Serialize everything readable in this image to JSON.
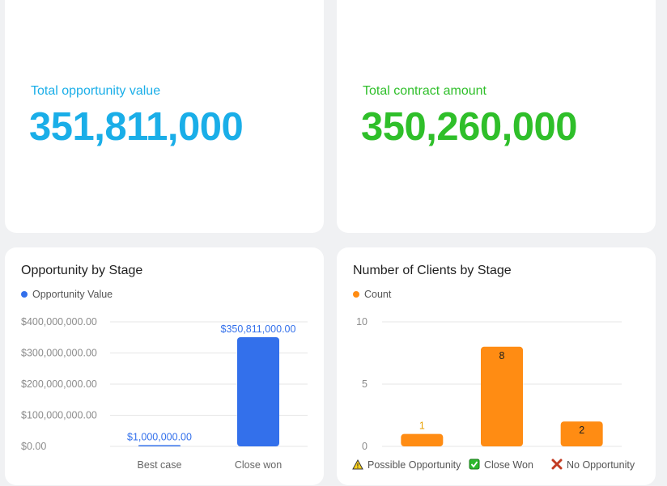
{
  "kpis": [
    {
      "label": "Total opportunity value",
      "value": "351,811,000",
      "color": "#1aaee8"
    },
    {
      "label": "Total contract amount",
      "value": "350,260,000",
      "color": "#2fbf2a"
    }
  ],
  "colors": {
    "blue": "#3370eb",
    "orange": "#ff8c13",
    "label_blue": "#3370eb",
    "label_orange": "#e8a000"
  },
  "chart_data": [
    {
      "type": "bar",
      "title": "Opportunity by Stage",
      "legend": "Opportunity Value",
      "categories": [
        "Best case",
        "Close won"
      ],
      "values": [
        1000000,
        350811000
      ],
      "value_labels": [
        "$1,000,000.00",
        "$350,811,000.00"
      ],
      "ylim": [
        0,
        400000000
      ],
      "yticks": [
        0,
        100000000,
        200000000,
        300000000,
        400000000
      ],
      "ytick_labels": [
        "$0.00",
        "$100,000,000.00",
        "$200,000,000.00",
        "$300,000,000.00",
        "$400,000,000.00"
      ],
      "xlabel": "",
      "ylabel": ""
    },
    {
      "type": "bar",
      "title": "Number of Clients by Stage",
      "legend": "Count",
      "categories": [
        "Possible Opportunity",
        "Close Won",
        "No Opportunity"
      ],
      "category_icons": [
        "warning-icon",
        "check-icon",
        "cross-icon"
      ],
      "values": [
        1,
        8,
        2
      ],
      "value_labels": [
        "1",
        "8",
        "2"
      ],
      "ylim": [
        0,
        10
      ],
      "yticks": [
        0,
        5,
        10
      ],
      "ytick_labels": [
        "0",
        "5",
        "10"
      ],
      "xlabel": "",
      "ylabel": ""
    }
  ]
}
